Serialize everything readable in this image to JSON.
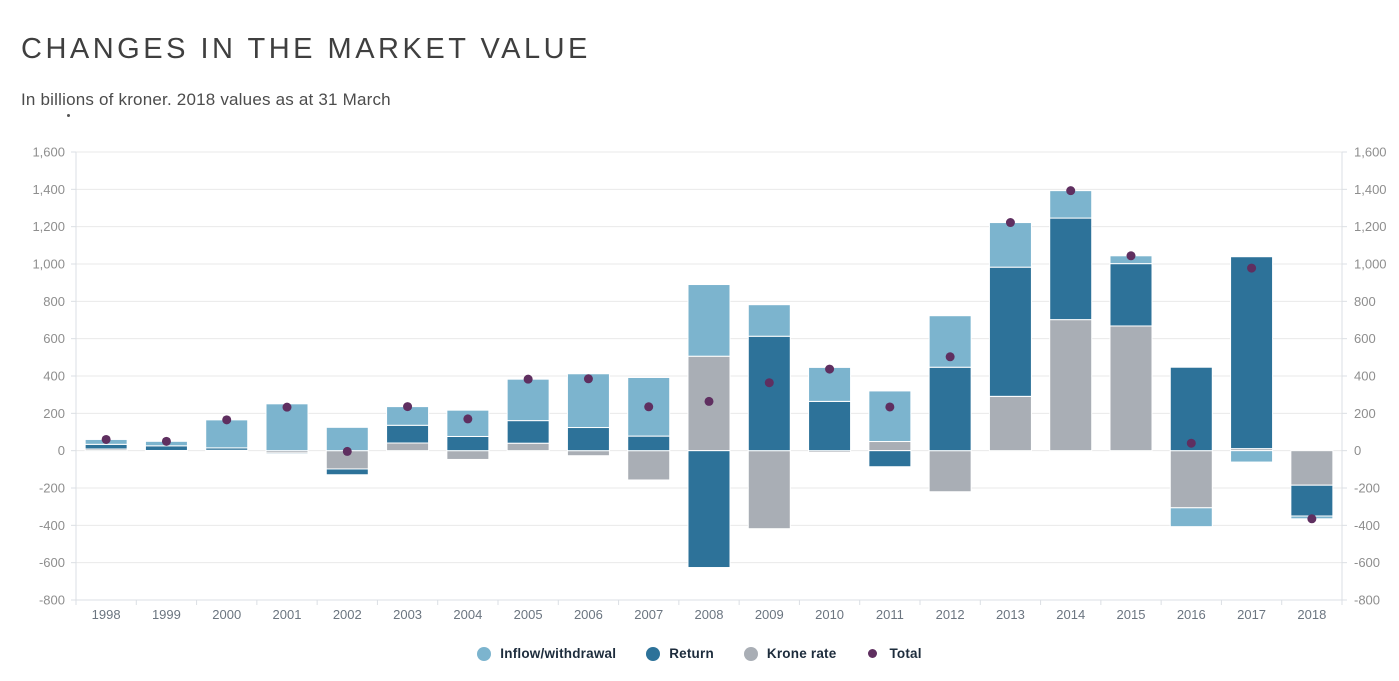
{
  "header": {
    "title": "CHANGES IN THE MARKET VALUE",
    "subtitle": "In billions of kroner. 2018 values as at 31 March"
  },
  "chart_data": {
    "type": "bar",
    "subtype": "stacked-bars-with-total-points",
    "title": "CHANGES IN THE MARKET VALUE",
    "subtitle": "In billions of kroner. 2018 values as at 31 March",
    "categories": [
      "1998",
      "1999",
      "2000",
      "2001",
      "2002",
      "2003",
      "2004",
      "2005",
      "2006",
      "2007",
      "2008",
      "2009",
      "2010",
      "2011",
      "2012",
      "2013",
      "2014",
      "2015",
      "2016",
      "2017",
      "2018"
    ],
    "series": [
      {
        "name": "Inflow/withdrawal",
        "type": "bar",
        "color": "#7cb4ce",
        "values": [
          26,
          24,
          150,
          251,
          125,
          100,
          141,
          222,
          288,
          314,
          384,
          169,
          182,
          271,
          276,
          239,
          147,
          42,
          -101,
          -61,
          -15
        ]
      },
      {
        "name": "Return",
        "type": "bar",
        "color": "#2d7299",
        "values": [
          25,
          25,
          13,
          -6,
          -31,
          95,
          76,
          121,
          124,
          78,
          -626,
          613,
          264,
          -86,
          447,
          692,
          544,
          334,
          447,
          1028,
          -165
        ]
      },
      {
        "name": "Krone rate",
        "type": "bar",
        "color": "#a9aeb5",
        "values": [
          9,
          1,
          2,
          -12,
          -98,
          41,
          -47,
          40,
          -27,
          -157,
          506,
          -418,
          -9,
          49,
          -220,
          291,
          702,
          668,
          -306,
          11,
          -185
        ]
      },
      {
        "name": "Total",
        "type": "point",
        "color": "#5f2f60",
        "values": [
          60,
          50,
          165,
          233,
          -4,
          236,
          170,
          383,
          385,
          235,
          264,
          364,
          437,
          234,
          503,
          1222,
          1393,
          1044,
          40,
          978,
          -365
        ]
      }
    ],
    "stack_order_from_baseline": [
      "Krone rate",
      "Return",
      "Inflow/withdrawal"
    ],
    "ylim": [
      -800,
      1600
    ],
    "ytick_step": 200,
    "y_axis_sides": "both",
    "grid": true,
    "legend_position": "bottom",
    "colors": {
      "gridline": "#e9e9e9",
      "plot_border": "#dbdfe4",
      "axis_text": "#8e8e8e",
      "category_text": "#6b7580",
      "legend_text": "#1d2c3c"
    }
  }
}
